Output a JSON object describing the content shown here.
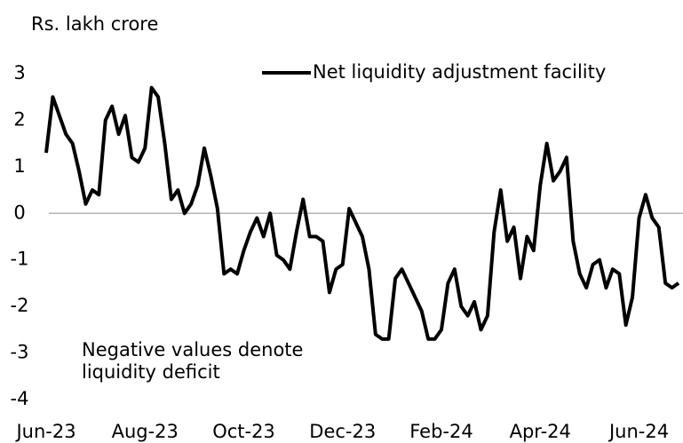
{
  "chart_data": {
    "type": "line",
    "y_axis_label": "Rs. lakh crore",
    "annotation": [
      "Negative values denote",
      "liquidity deficit"
    ],
    "legend": "top-right",
    "categories": [
      "Jun-23",
      null,
      null,
      null,
      null,
      null,
      null,
      null,
      null,
      null,
      null,
      null,
      null,
      null,
      null,
      "Aug-23",
      null,
      null,
      null,
      null,
      null,
      null,
      null,
      null,
      null,
      null,
      null,
      null,
      null,
      null,
      "Oct-23",
      null,
      null,
      null,
      null,
      null,
      null,
      null,
      null,
      null,
      null,
      null,
      null,
      null,
      null,
      "Dec-23",
      null,
      null,
      null,
      null,
      null,
      null,
      null,
      null,
      null,
      null,
      null,
      null,
      null,
      null,
      "Feb-24",
      null,
      null,
      null,
      null,
      null,
      null,
      null,
      null,
      null,
      null,
      null,
      null,
      null,
      null,
      "Apr-24",
      null,
      null,
      null,
      null,
      null,
      null,
      null,
      null,
      null,
      null,
      null,
      null,
      null,
      null,
      "Jun-24",
      null,
      null,
      null,
      null,
      null,
      null
    ],
    "series": [
      {
        "name": "Net liquidity adjustment facility",
        "color": "#000000",
        "values": [
          1.3,
          2.5,
          2.1,
          1.7,
          1.5,
          0.9,
          0.2,
          0.5,
          0.4,
          2.0,
          2.3,
          1.7,
          2.1,
          1.2,
          1.1,
          1.4,
          2.7,
          2.5,
          1.5,
          0.3,
          0.5,
          0.0,
          0.2,
          0.6,
          1.4,
          0.8,
          0.1,
          -1.3,
          -1.2,
          -1.3,
          -0.8,
          -0.4,
          -0.1,
          -0.5,
          0.0,
          -0.9,
          -1.0,
          -1.2,
          -0.4,
          0.3,
          -0.5,
          -0.5,
          -0.6,
          -1.7,
          -1.2,
          -1.1,
          0.1,
          -0.2,
          -0.5,
          -1.2,
          -2.6,
          -2.7,
          -2.7,
          -1.4,
          -1.2,
          -1.5,
          -1.8,
          -2.1,
          -2.7,
          -2.7,
          -2.5,
          -1.5,
          -1.2,
          -2.0,
          -2.2,
          -1.9,
          -2.5,
          -2.2,
          -0.4,
          0.5,
          -0.6,
          -0.3,
          -1.4,
          -0.5,
          -0.8,
          0.6,
          1.5,
          0.7,
          0.9,
          1.2,
          -0.6,
          -1.3,
          -1.6,
          -1.1,
          -1.0,
          -1.6,
          -1.2,
          -1.3,
          -2.4,
          -1.8,
          -0.1,
          0.4,
          -0.1,
          -0.3,
          -1.5,
          -1.6,
          -1.5
        ]
      }
    ],
    "ylim": [
      -4,
      3
    ],
    "yticks": [
      -4,
      -3,
      -2,
      -1,
      0,
      1,
      2,
      3
    ]
  }
}
